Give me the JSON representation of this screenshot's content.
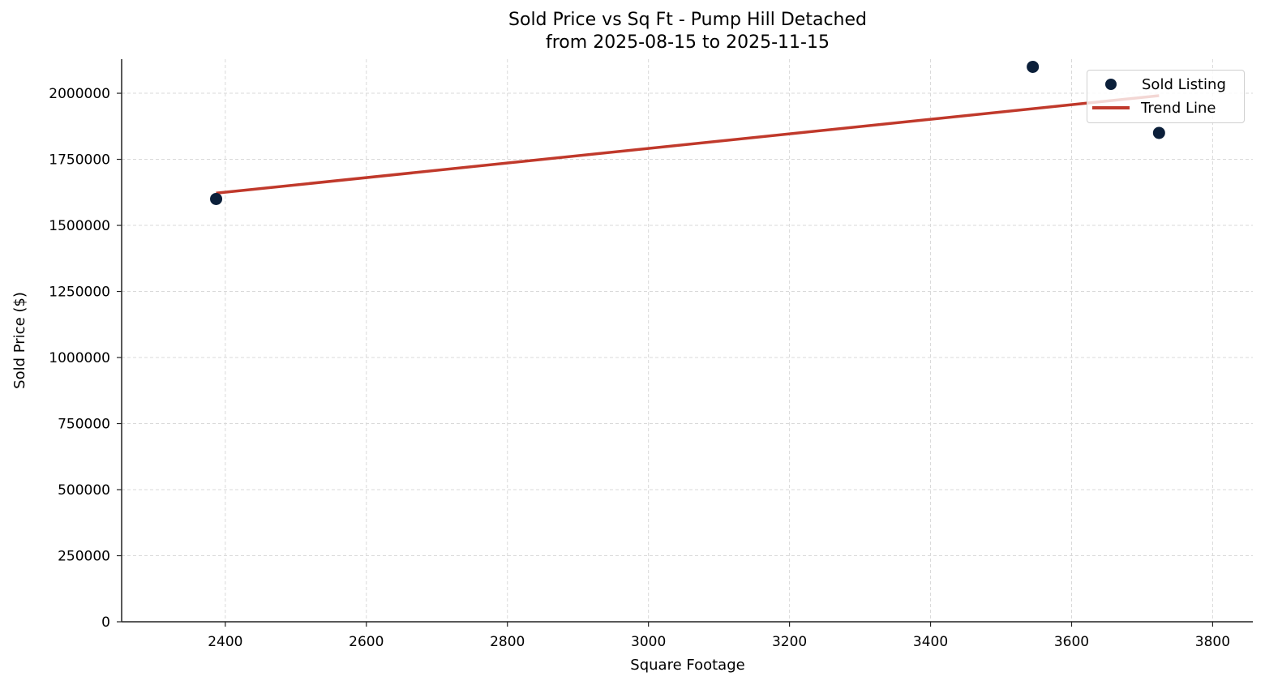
{
  "chart_data": {
    "type": "scatter",
    "title": "Sold Price vs Sq Ft - Pump Hill Detached",
    "subtitle": "from 2025-08-15 to 2025-11-15",
    "title_line1": "Sold Price vs Sq Ft - Pump Hill Detached",
    "title_line2": "from 2025-08-15 to 2025-11-15",
    "xlabel": "Square Footage",
    "ylabel": "Sold Price ($)",
    "xlim": [
      2253,
      3857
    ],
    "ylim": [
      0,
      2129000
    ],
    "xticks": [
      2400,
      2600,
      2800,
      3000,
      3200,
      3400,
      3600,
      3800
    ],
    "yticks": [
      0,
      250000,
      500000,
      750000,
      1000000,
      1250000,
      1500000,
      1750000,
      2000000
    ],
    "grid": true,
    "legend_position": "upper right",
    "series": [
      {
        "name": "Sold Listing",
        "kind": "scatter",
        "color": "#0b1f3a",
        "points": [
          [
            2387,
            1600000
          ],
          [
            3545,
            2100000
          ],
          [
            3724,
            1850000
          ]
        ]
      },
      {
        "name": "Trend Line",
        "kind": "line",
        "color": "#c0392b",
        "points": [
          [
            2387,
            1622000
          ],
          [
            3724,
            1991000
          ]
        ]
      }
    ]
  },
  "legend": {
    "items": [
      {
        "label": "Sold Listing",
        "color": "#0b1f3a"
      },
      {
        "label": "Trend Line",
        "color": "#c0392b"
      }
    ]
  }
}
